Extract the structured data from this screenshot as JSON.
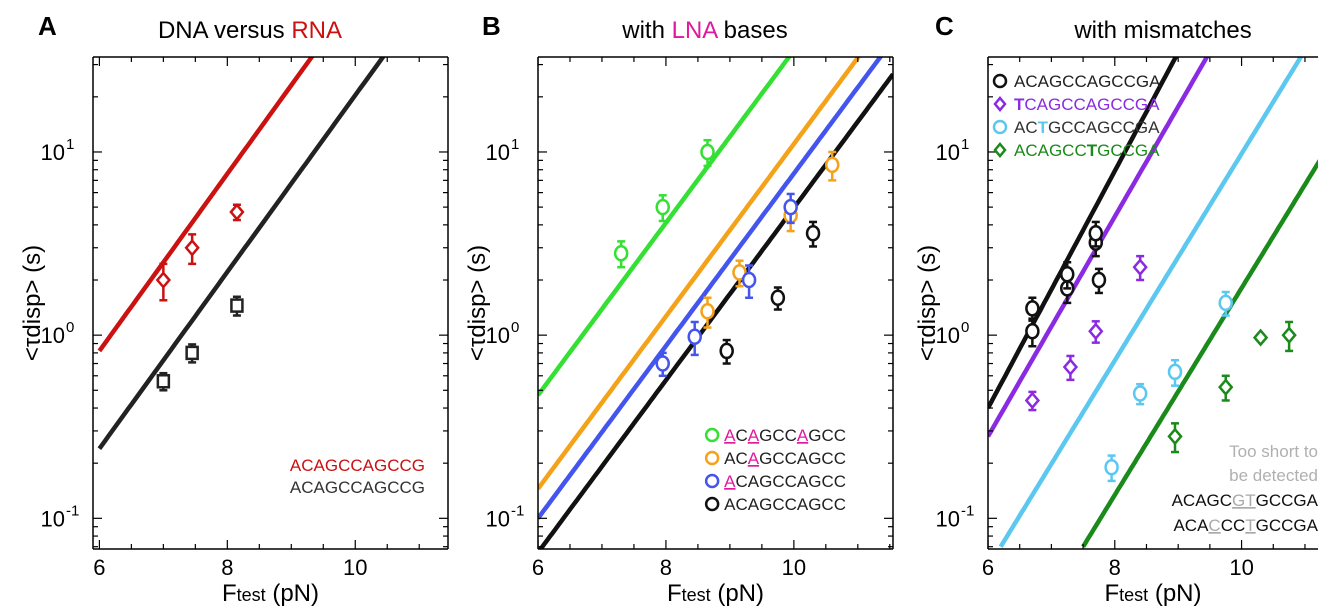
{
  "chart_data": [
    {
      "type": "line",
      "panel_label": "A",
      "title_parts": [
        {
          "text": "DNA versus ",
          "color": "#000000"
        },
        {
          "text": "RNA",
          "color": "#cc1111"
        }
      ],
      "xlabel_main": "F",
      "xlabel_sub": "test",
      "xlabel_unit": " (pN)",
      "ylabel": "<τdisp> (s)",
      "xlim": [
        5.9,
        11.45
      ],
      "ylim": [
        0.068,
        33
      ],
      "yscale": "log",
      "xticks": [
        "6",
        "8",
        "10"
      ],
      "xtick_values": [
        6,
        8,
        10
      ],
      "yticks_base": [
        "10",
        "10",
        "10"
      ],
      "yticks_exp": [
        "-1",
        "0",
        "1"
      ],
      "ytick_values": [
        0.1,
        1,
        10
      ],
      "series": [
        {
          "color": "#cc1111",
          "marker": "diamond",
          "curve": {
            "a": 0.82,
            "b": 0.822,
            "x0": 6
          },
          "points": [
            {
              "x": 7.0,
              "y": 2.0,
              "err": 0.45
            },
            {
              "x": 7.45,
              "y": 3.0,
              "err": 0.55
            },
            {
              "x": 8.15,
              "y": 4.7,
              "err": 0.45
            }
          ]
        },
        {
          "color": "#222222",
          "marker": "square",
          "curve": {
            "a": 0.24,
            "b": 0.82,
            "x0": 6
          },
          "points": [
            {
              "x": 7.0,
              "y": 0.56,
              "err": 0.06
            },
            {
              "x": 7.45,
              "y": 0.8,
              "err": 0.09
            },
            {
              "x": 8.15,
              "y": 1.45,
              "err": 0.17
            }
          ]
        }
      ],
      "legend": [
        {
          "color": "#cc1111",
          "parts": [
            {
              "text": "ACAGCCAGCCG",
              "color": "#cc1111"
            }
          ]
        },
        {
          "color": "#333333",
          "parts": [
            {
              "text": "ACAGCCAGCCG",
              "color": "#333333"
            }
          ]
        }
      ],
      "legend_marker": false
    },
    {
      "type": "line",
      "panel_label": "B",
      "title_parts": [
        {
          "text": "with ",
          "color": "#000000"
        },
        {
          "text": "LNA",
          "color": "#e0199f"
        },
        {
          "text": " bases",
          "color": "#000000"
        }
      ],
      "xlabel_main": "F",
      "xlabel_sub": "test",
      "xlabel_unit": " (pN)",
      "ylabel": "<τdisp> (s)",
      "xlim": [
        6.0,
        11.55
      ],
      "ylim": [
        0.068,
        33
      ],
      "yscale": "log",
      "xticks": [
        "6",
        "8",
        "10"
      ],
      "xtick_values": [
        6,
        8,
        10
      ],
      "yticks_base": [
        "10",
        "10",
        "10"
      ],
      "yticks_exp": [
        "-1",
        "0",
        "1"
      ],
      "ytick_values": [
        0.1,
        1,
        10
      ],
      "series": [
        {
          "color": "#33e033",
          "marker": "circle",
          "curve": {
            "a": 0.47,
            "b": 0.8,
            "x0": 6
          },
          "points": [
            {
              "x": 7.3,
              "y": 2.8,
              "err": 0.45
            },
            {
              "x": 7.95,
              "y": 5.0,
              "err": 0.8
            },
            {
              "x": 8.65,
              "y": 10.0,
              "err": 1.6
            }
          ]
        },
        {
          "color": "#f5a21b",
          "marker": "circle",
          "curve": {
            "a": 0.145,
            "b": 0.8,
            "x0": 6
          },
          "points": [
            {
              "x": 8.65,
              "y": 1.35,
              "err": 0.25
            },
            {
              "x": 9.15,
              "y": 2.2,
              "err": 0.35
            },
            {
              "x": 9.95,
              "y": 4.5,
              "err": 0.8
            },
            {
              "x": 10.6,
              "y": 8.5,
              "err": 1.5
            }
          ]
        },
        {
          "color": "#4455ee",
          "marker": "circle",
          "curve": {
            "a": 0.1,
            "b": 0.8,
            "x0": 6
          },
          "points": [
            {
              "x": 7.95,
              "y": 0.7,
              "err": 0.1
            },
            {
              "x": 8.45,
              "y": 0.98,
              "err": 0.2
            },
            {
              "x": 9.3,
              "y": 2.0,
              "err": 0.4
            },
            {
              "x": 9.95,
              "y": 5.0,
              "err": 0.9
            }
          ]
        },
        {
          "color": "#111111",
          "marker": "circle",
          "curve": {
            "a": 0.065,
            "b": 0.8,
            "x0": 6
          },
          "points": [
            {
              "x": 8.95,
              "y": 0.82,
              "err": 0.12
            },
            {
              "x": 9.75,
              "y": 1.6,
              "err": 0.22
            },
            {
              "x": 10.3,
              "y": 3.6,
              "err": 0.55
            }
          ]
        }
      ],
      "legend": [
        {
          "color": "#33e033",
          "parts": [
            {
              "text": "A",
              "color": "#e0199f",
              "underline": true
            },
            {
              "text": "C",
              "color": "#222222"
            },
            {
              "text": "A",
              "color": "#e0199f",
              "underline": true
            },
            {
              "text": "GCC",
              "color": "#222222"
            },
            {
              "text": "A",
              "color": "#e0199f",
              "underline": true
            },
            {
              "text": "GCC",
              "color": "#222222"
            }
          ]
        },
        {
          "color": "#f5a21b",
          "parts": [
            {
              "text": "AC",
              "color": "#222222"
            },
            {
              "text": "A",
              "color": "#e0199f",
              "underline": true
            },
            {
              "text": "GCCAGCC",
              "color": "#222222"
            }
          ]
        },
        {
          "color": "#4455ee",
          "parts": [
            {
              "text": "A",
              "color": "#e0199f",
              "underline": true
            },
            {
              "text": "CAGCCAGCC",
              "color": "#222222"
            }
          ]
        },
        {
          "color": "#111111",
          "parts": [
            {
              "text": "ACAGCCAGCC",
              "color": "#222222"
            }
          ]
        }
      ],
      "legend_marker": true
    },
    {
      "type": "line",
      "panel_label": "C",
      "title_parts": [
        {
          "text": "with mismatches",
          "color": "#000000"
        }
      ],
      "xlabel_main": "F",
      "xlabel_sub": "test",
      "xlabel_unit": " (pN)",
      "ylabel": "<τdisp> (s)",
      "xlim": [
        6.0,
        11.6
      ],
      "ylim": [
        0.068,
        33
      ],
      "yscale": "log",
      "xticks": [
        "6",
        "8",
        "10"
      ],
      "xtick_values": [
        6,
        8,
        10
      ],
      "yticks_base": [
        "10",
        "10",
        "10"
      ],
      "yticks_exp": [
        "-1",
        "0",
        "1"
      ],
      "ytick_values": [
        0.1,
        1,
        10
      ],
      "series": [
        {
          "color": "#111111",
          "marker": "circle",
          "curve": {
            "a": 0.4,
            "b": 1.1,
            "x0": 6
          },
          "points": [
            {
              "x": 6.7,
              "y": 1.05,
              "err": 0.18
            },
            {
              "x": 6.7,
              "y": 1.4,
              "err": 0.2
            },
            {
              "x": 7.25,
              "y": 1.8,
              "err": 0.3
            },
            {
              "x": 7.25,
              "y": 2.15,
              "err": 0.35
            },
            {
              "x": 7.7,
              "y": 3.2,
              "err": 0.5
            },
            {
              "x": 7.7,
              "y": 3.6,
              "err": 0.55
            },
            {
              "x": 7.75,
              "y": 2.0,
              "err": 0.3
            }
          ]
        },
        {
          "color": "#8a2be2",
          "marker": "diamond",
          "curve": {
            "a": 0.28,
            "b": 1.02,
            "x0": 6
          },
          "points": [
            {
              "x": 6.7,
              "y": 0.44,
              "err": 0.05
            },
            {
              "x": 7.3,
              "y": 0.67,
              "err": 0.1
            },
            {
              "x": 7.7,
              "y": 1.05,
              "err": 0.14
            },
            {
              "x": 8.4,
              "y": 2.35,
              "err": 0.35
            }
          ]
        },
        {
          "color": "#5cc8f0",
          "marker": "circle",
          "curve": {
            "a": 0.07,
            "b": 0.96,
            "x0": 6.2
          },
          "points": [
            {
              "x": 7.95,
              "y": 0.19,
              "err": 0.03
            },
            {
              "x": 8.4,
              "y": 0.48,
              "err": 0.06
            },
            {
              "x": 8.95,
              "y": 0.63,
              "err": 0.1
            },
            {
              "x": 9.75,
              "y": 1.5,
              "err": 0.22
            }
          ]
        },
        {
          "color": "#1a8a1a",
          "marker": "diamond",
          "curve": {
            "a": 0.07,
            "b": 0.96,
            "x0": 7.5
          },
          "points": [
            {
              "x": 8.95,
              "y": 0.28,
              "err": 0.05
            },
            {
              "x": 9.75,
              "y": 0.52,
              "err": 0.08
            },
            {
              "x": 10.3,
              "y": 0.97,
              "err": 0.04
            },
            {
              "x": 10.75,
              "y": 1.0,
              "err": 0.18
            }
          ]
        }
      ],
      "legend": [
        {
          "color": "#111111",
          "marker": "circle",
          "parts": [
            {
              "text": "ACAGCCAGCCGA",
              "color": "#222222"
            }
          ]
        },
        {
          "color": "#8a2be2",
          "marker": "diamond",
          "parts": [
            {
              "text": "T",
              "color": "#8a2be2",
              "bold": true
            },
            {
              "text": "CAGCCAGCCGA",
              "color": "#8a2be2"
            }
          ]
        },
        {
          "color": "#5cc8f0",
          "marker": "circle",
          "parts": [
            {
              "text": "AC",
              "color": "#333333"
            },
            {
              "text": "T",
              "color": "#5cc8f0",
              "bold": true
            },
            {
              "text": "GCCAGCCGA",
              "color": "#333333"
            }
          ]
        },
        {
          "color": "#1a8a1a",
          "marker": "diamond",
          "parts": [
            {
              "text": "ACAGCC",
              "color": "#1a8a1a"
            },
            {
              "text": "T",
              "color": "#1a8a1a",
              "bold": true
            },
            {
              "text": "GCCGA",
              "color": "#1a8a1a"
            }
          ]
        }
      ],
      "legend_marker": true,
      "note": {
        "lines": [
          "Too short to",
          "be detected"
        ],
        "color": "#b0b0b0",
        "sequences": [
          [
            {
              "text": "ACAGC",
              "color": "#111111"
            },
            {
              "text": "GT",
              "color": "#aaaaaa",
              "underline": true
            },
            {
              "text": "GCCGA",
              "color": "#111111"
            }
          ],
          [
            {
              "text": "ACA",
              "color": "#111111"
            },
            {
              "text": "C",
              "color": "#aaaaaa",
              "underline": true
            },
            {
              "text": "CC",
              "color": "#111111"
            },
            {
              "text": "T",
              "color": "#aaaaaa",
              "underline": true
            },
            {
              "text": "GCCGA",
              "color": "#111111"
            }
          ]
        ]
      }
    }
  ]
}
